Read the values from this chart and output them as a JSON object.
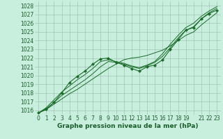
{
  "bg_color": "#c8eedd",
  "grid_color": "#99bbaa",
  "line_color": "#1a6b2a",
  "xlabel": "Graphe pression niveau de la mer (hPa)",
  "ylim": [
    1015.5,
    1028.5
  ],
  "yticks": [
    1016,
    1017,
    1018,
    1019,
    1020,
    1021,
    1022,
    1023,
    1024,
    1025,
    1026,
    1027,
    1028
  ],
  "xtick_labels": [
    "0",
    "1",
    "2",
    "3",
    "4",
    "5",
    "6",
    "7",
    "8",
    "9",
    "10",
    "11",
    "12",
    "13",
    "14",
    "15",
    "16",
    "17",
    "18",
    "19",
    "",
    "21",
    "22",
    "23"
  ],
  "font_color": "#1a5c2a",
  "tick_font_size": 5.5,
  "label_font_size": 6.5,
  "wavy_series": [
    1015.7,
    1016.1,
    1016.9,
    1018.0,
    1019.2,
    1019.9,
    1020.5,
    1021.3,
    1021.9,
    1022.0,
    1021.5,
    1021.2,
    1020.8,
    1020.5,
    1021.0,
    1021.2,
    1021.8,
    1023.0,
    1024.1,
    1025.2,
    1025.5,
    1026.5,
    1027.1,
    1027.5
  ],
  "straight_series1": [
    1015.7,
    1016.1,
    1016.7,
    1017.3,
    1017.9,
    1018.4,
    1019.0,
    1019.6,
    1020.2,
    1020.8,
    1021.3,
    1021.8,
    1022.0,
    1022.1,
    1022.3,
    1022.6,
    1022.9,
    1023.4,
    1024.0,
    1024.6,
    1025.0,
    1025.8,
    1026.5,
    1027.2
  ],
  "straight_series2": [
    1015.7,
    1016.2,
    1016.9,
    1017.7,
    1018.3,
    1018.9,
    1019.5,
    1020.2,
    1021.0,
    1021.6,
    1021.5,
    1021.3,
    1021.0,
    1020.8,
    1021.1,
    1021.5,
    1022.2,
    1023.2,
    1024.3,
    1025.2,
    1025.6,
    1026.5,
    1027.2,
    1027.7
  ],
  "straight_series3": [
    1015.7,
    1016.3,
    1017.2,
    1018.1,
    1018.8,
    1019.5,
    1020.1,
    1020.8,
    1021.6,
    1021.8,
    1021.6,
    1021.4,
    1021.1,
    1020.9,
    1021.2,
    1021.6,
    1022.5,
    1023.6,
    1024.6,
    1025.5,
    1026.0,
    1026.8,
    1027.4,
    1027.9
  ]
}
